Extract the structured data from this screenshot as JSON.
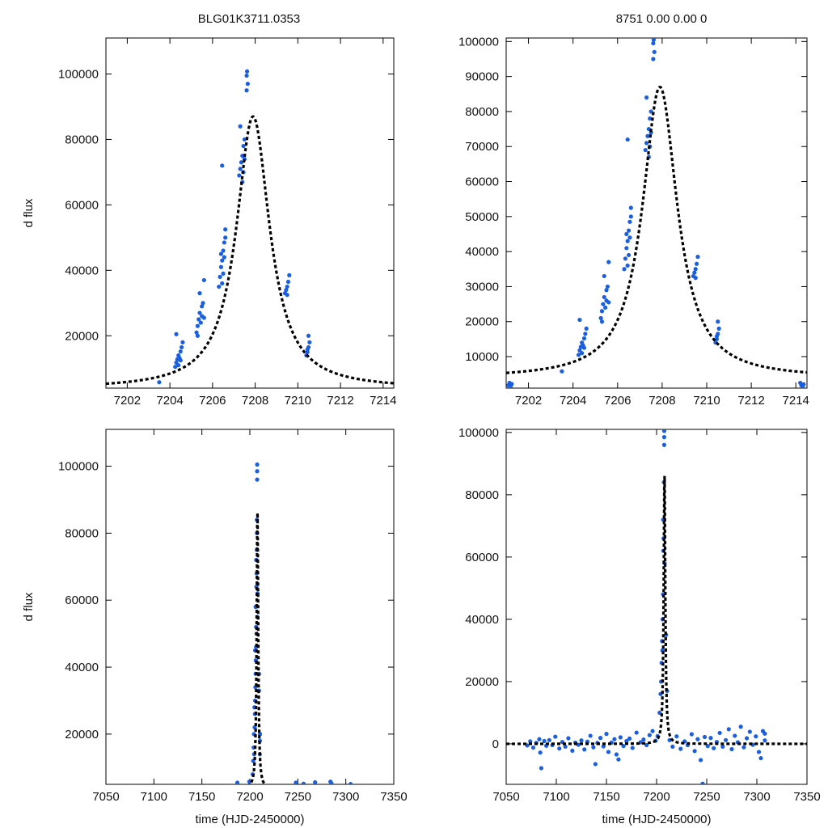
{
  "figure": {
    "title_left": "BLG01K3711.0353",
    "title_right": "8751   0.00   0.00   0",
    "point_color": "#1a5fe0",
    "model_color": "#000000"
  },
  "chart_data": [
    {
      "type": "scatter",
      "panel": "top-left",
      "title": "BLG01K3711.0353",
      "xlabel": "",
      "ylabel": "d flux",
      "xlim": [
        7201,
        7214.5
      ],
      "ylim": [
        4000,
        111000
      ],
      "xticks": [
        7202,
        7204,
        7206,
        7208,
        7210,
        7212,
        7214
      ],
      "yticks": [
        20000,
        40000,
        60000,
        80000,
        100000
      ],
      "model": {
        "t0": 7207.9,
        "peak": 87000,
        "base": 3800,
        "width": 0.95
      },
      "points": [
        [
          7203.5,
          5800
        ],
        [
          7204.25,
          10500
        ],
        [
          7204.3,
          11800
        ],
        [
          7204.35,
          12800
        ],
        [
          7204.4,
          14000
        ],
        [
          7204.45,
          13200
        ],
        [
          7204.5,
          15200
        ],
        [
          7204.55,
          16500
        ],
        [
          7204.3,
          20500
        ],
        [
          7204.6,
          18000
        ],
        [
          7204.4,
          11000
        ],
        [
          7204.5,
          12500
        ],
        [
          7205.25,
          21000
        ],
        [
          7205.3,
          23000
        ],
        [
          7205.35,
          25000
        ],
        [
          7205.4,
          27000
        ],
        [
          7205.45,
          24000
        ],
        [
          7205.5,
          29000
        ],
        [
          7205.55,
          30000
        ],
        [
          7205.4,
          33000
        ],
        [
          7205.6,
          37000
        ],
        [
          7205.5,
          26000
        ],
        [
          7205.3,
          20000
        ],
        [
          7205.6,
          25500
        ],
        [
          7206.3,
          35000
        ],
        [
          7206.35,
          38000
        ],
        [
          7206.4,
          41000
        ],
        [
          7206.45,
          43000
        ],
        [
          7206.5,
          46000
        ],
        [
          7206.55,
          48500
        ],
        [
          7206.6,
          50000
        ],
        [
          7206.6,
          52500
        ],
        [
          7206.5,
          39000
        ],
        [
          7206.45,
          36000
        ],
        [
          7206.4,
          45000
        ],
        [
          7206.55,
          44000
        ],
        [
          7206.45,
          72000
        ],
        [
          7207.25,
          69000
        ],
        [
          7207.3,
          71000
        ],
        [
          7207.35,
          73000
        ],
        [
          7207.4,
          75000
        ],
        [
          7207.45,
          78000
        ],
        [
          7207.5,
          80000
        ],
        [
          7207.3,
          84000
        ],
        [
          7207.45,
          70000
        ],
        [
          7207.5,
          74000
        ],
        [
          7207.4,
          67000
        ],
        [
          7207.6,
          95000
        ],
        [
          7207.65,
          97000
        ],
        [
          7207.6,
          99500
        ],
        [
          7207.62,
          100800
        ],
        [
          7209.4,
          33000
        ],
        [
          7209.45,
          34000
        ],
        [
          7209.5,
          35000
        ],
        [
          7209.55,
          36500
        ],
        [
          7209.6,
          38500
        ],
        [
          7209.5,
          32500
        ],
        [
          7210.4,
          14000
        ],
        [
          7210.45,
          15000
        ],
        [
          7210.5,
          16500
        ],
        [
          7210.55,
          18000
        ],
        [
          7210.5,
          20000
        ],
        [
          7210.45,
          15800
        ]
      ]
    },
    {
      "type": "scatter",
      "panel": "top-right",
      "title": "8751   0.00   0.00   0",
      "xlabel": "",
      "ylabel": "",
      "xlim": [
        7201,
        7214.5
      ],
      "ylim": [
        1000,
        101000
      ],
      "xticks": [
        7202,
        7204,
        7206,
        7208,
        7210,
        7212,
        7214
      ],
      "yticks": [
        10000,
        20000,
        30000,
        40000,
        50000,
        60000,
        70000,
        80000,
        90000,
        100000
      ],
      "model": {
        "t0": 7207.9,
        "peak": 87000,
        "base": 3800,
        "width": 0.95
      },
      "points": [
        [
          7201.1,
          1800
        ],
        [
          7201.15,
          2500
        ],
        [
          7201.2,
          1500
        ],
        [
          7201.25,
          2200
        ],
        [
          7203.5,
          5800
        ],
        [
          7204.25,
          10500
        ],
        [
          7204.3,
          11800
        ],
        [
          7204.35,
          12800
        ],
        [
          7204.4,
          14000
        ],
        [
          7204.45,
          13200
        ],
        [
          7204.5,
          15200
        ],
        [
          7204.55,
          16500
        ],
        [
          7204.3,
          20500
        ],
        [
          7204.6,
          18000
        ],
        [
          7204.4,
          11000
        ],
        [
          7204.5,
          12500
        ],
        [
          7205.25,
          21000
        ],
        [
          7205.3,
          23000
        ],
        [
          7205.35,
          25000
        ],
        [
          7205.4,
          27000
        ],
        [
          7205.45,
          24000
        ],
        [
          7205.5,
          29000
        ],
        [
          7205.55,
          30000
        ],
        [
          7205.4,
          33000
        ],
        [
          7205.6,
          37000
        ],
        [
          7205.5,
          26000
        ],
        [
          7205.3,
          20000
        ],
        [
          7205.6,
          25500
        ],
        [
          7206.3,
          35000
        ],
        [
          7206.35,
          38000
        ],
        [
          7206.4,
          41000
        ],
        [
          7206.45,
          43000
        ],
        [
          7206.5,
          46000
        ],
        [
          7206.55,
          48500
        ],
        [
          7206.6,
          50000
        ],
        [
          7206.6,
          52500
        ],
        [
          7206.5,
          39000
        ],
        [
          7206.45,
          36000
        ],
        [
          7206.4,
          45000
        ],
        [
          7206.55,
          44000
        ],
        [
          7206.45,
          72000
        ],
        [
          7207.25,
          69000
        ],
        [
          7207.3,
          71000
        ],
        [
          7207.35,
          73000
        ],
        [
          7207.4,
          75000
        ],
        [
          7207.45,
          78000
        ],
        [
          7207.5,
          80000
        ],
        [
          7207.3,
          84000
        ],
        [
          7207.45,
          70000
        ],
        [
          7207.5,
          74000
        ],
        [
          7207.4,
          67000
        ],
        [
          7207.6,
          95000
        ],
        [
          7207.65,
          97000
        ],
        [
          7207.6,
          99500
        ],
        [
          7207.62,
          100500
        ],
        [
          7209.4,
          33000
        ],
        [
          7209.45,
          34000
        ],
        [
          7209.5,
          35000
        ],
        [
          7209.55,
          36500
        ],
        [
          7209.6,
          38500
        ],
        [
          7209.5,
          32500
        ],
        [
          7210.4,
          14000
        ],
        [
          7210.45,
          15000
        ],
        [
          7210.5,
          16500
        ],
        [
          7210.55,
          18000
        ],
        [
          7210.5,
          20000
        ],
        [
          7210.45,
          15800
        ],
        [
          7214.2,
          2500
        ],
        [
          7214.25,
          1800
        ],
        [
          7214.3,
          1400
        ],
        [
          7214.35,
          2100
        ]
      ]
    },
    {
      "type": "scatter",
      "panel": "bottom-left",
      "title": "",
      "xlabel": "time (HJD-2450000)",
      "ylabel": "d flux",
      "xlim": [
        7050,
        7350
      ],
      "ylim": [
        5000,
        111000
      ],
      "xticks": [
        7050,
        7100,
        7150,
        7200,
        7250,
        7300,
        7350
      ],
      "yticks": [
        20000,
        40000,
        60000,
        80000,
        100000
      ],
      "model": {
        "t0": 7207.9,
        "peak": 87000,
        "base": 3800,
        "width": 0.95
      },
      "points": [
        [
          7187,
          5500
        ],
        [
          7199.5,
          5800
        ],
        [
          7203,
          8000
        ],
        [
          7203.5,
          12000
        ],
        [
          7204,
          16000
        ],
        [
          7204.3,
          20000
        ],
        [
          7204.5,
          14000
        ],
        [
          7205,
          22000
        ],
        [
          7205.3,
          26000
        ],
        [
          7205.5,
          30000
        ],
        [
          7205.8,
          34000
        ],
        [
          7206,
          38000
        ],
        [
          7206.2,
          42000
        ],
        [
          7206.5,
          46000
        ],
        [
          7206.5,
          52000
        ],
        [
          7206.6,
          72000
        ],
        [
          7207,
          68000
        ],
        [
          7207.2,
          75000
        ],
        [
          7207.4,
          80000
        ],
        [
          7207.3,
          84000
        ],
        [
          7207.6,
          96000
        ],
        [
          7207.6,
          98500
        ],
        [
          7207.62,
          100500
        ],
        [
          7209.5,
          33000
        ],
        [
          7209.6,
          38000
        ],
        [
          7210.4,
          14000
        ],
        [
          7210.5,
          18000
        ],
        [
          7210.6,
          20000
        ],
        [
          7208,
          62000
        ],
        [
          7207.8,
          55000
        ],
        [
          7205.5,
          45000
        ],
        [
          7206,
          58000
        ],
        [
          7206.8,
          64000
        ],
        [
          7207,
          50000
        ],
        [
          7204.8,
          28000
        ],
        [
          7248,
          5500
        ],
        [
          7256,
          5200
        ],
        [
          7268,
          5600
        ],
        [
          7284,
          5800
        ],
        [
          7285,
          5300
        ],
        [
          7305,
          5100
        ]
      ]
    },
    {
      "type": "scatter",
      "panel": "bottom-right",
      "title": "",
      "xlabel": "time (HJD-2450000)",
      "ylabel": "",
      "xlim": [
        7050,
        7350
      ],
      "ylim": [
        -13000,
        101000
      ],
      "xticks": [
        7050,
        7100,
        7150,
        7200,
        7250,
        7300,
        7350
      ],
      "yticks": [
        0,
        20000,
        40000,
        60000,
        80000,
        100000
      ],
      "model": {
        "t0": 7207.9,
        "peak": 87000,
        "base": 0,
        "width": 0.95
      },
      "points": [
        [
          7071,
          -500
        ],
        [
          7074,
          800
        ],
        [
          7077,
          -1200
        ],
        [
          7080,
          300
        ],
        [
          7083,
          1500
        ],
        [
          7084,
          -2800
        ],
        [
          7085,
          -7800
        ],
        [
          7088,
          900
        ],
        [
          7090,
          -600
        ],
        [
          7093,
          1200
        ],
        [
          7096,
          -400
        ],
        [
          7099,
          2300
        ],
        [
          7103,
          -1500
        ],
        [
          7106,
          600
        ],
        [
          7109,
          -900
        ],
        [
          7112,
          1800
        ],
        [
          7116,
          -2200
        ],
        [
          7119,
          400
        ],
        [
          7122,
          -300
        ],
        [
          7125,
          1100
        ],
        [
          7128,
          -1800
        ],
        [
          7131,
          700
        ],
        [
          7134,
          2600
        ],
        [
          7137,
          -1100
        ],
        [
          7139,
          -6500
        ],
        [
          7141,
          300
        ],
        [
          7144,
          1900
        ],
        [
          7147,
          -800
        ],
        [
          7150,
          3200
        ],
        [
          7152,
          -2600
        ],
        [
          7155,
          400
        ],
        [
          7158,
          1500
        ],
        [
          7160,
          -3400
        ],
        [
          7162,
          -5000
        ],
        [
          7164,
          2100
        ],
        [
          7167,
          -700
        ],
        [
          7170,
          900
        ],
        [
          7173,
          1700
        ],
        [
          7176,
          -1300
        ],
        [
          7180,
          3600
        ],
        [
          7184,
          500
        ],
        [
          7187,
          1400
        ],
        [
          7190,
          -400
        ],
        [
          7193,
          2800
        ],
        [
          7196,
          4100
        ],
        [
          7199,
          1000
        ],
        [
          7201,
          2500
        ],
        [
          7203,
          10000
        ],
        [
          7204,
          16000
        ],
        [
          7204.5,
          20000
        ],
        [
          7205,
          26000
        ],
        [
          7205.5,
          33000
        ],
        [
          7206,
          40000
        ],
        [
          7206.5,
          48000
        ],
        [
          7206.6,
          72000
        ],
        [
          7207,
          66000
        ],
        [
          7207.3,
          84000
        ],
        [
          7207.6,
          96000
        ],
        [
          7207.6,
          98500
        ],
        [
          7207.62,
          100500
        ],
        [
          7209.5,
          35000
        ],
        [
          7210.5,
          17000
        ],
        [
          7208,
          58000
        ],
        [
          7206.8,
          62000
        ],
        [
          7205.8,
          30000
        ],
        [
          7213,
          1200
        ],
        [
          7216,
          -900
        ],
        [
          7220,
          2400
        ],
        [
          7224,
          -1600
        ],
        [
          7228,
          800
        ],
        [
          7231,
          -400
        ],
        [
          7235,
          3100
        ],
        [
          7238,
          -2300
        ],
        [
          7241,
          1500
        ],
        [
          7244,
          -5200
        ],
        [
          7246,
          -12800
        ],
        [
          7248,
          2200
        ],
        [
          7251,
          -700
        ],
        [
          7254,
          1900
        ],
        [
          7257,
          -1400
        ],
        [
          7260,
          600
        ],
        [
          7263,
          3500
        ],
        [
          7266,
          -900
        ],
        [
          7269,
          1200
        ],
        [
          7272,
          4700
        ],
        [
          7275,
          -1700
        ],
        [
          7278,
          2600
        ],
        [
          7281,
          500
        ],
        [
          7284,
          5500
        ],
        [
          7287,
          -1100
        ],
        [
          7290,
          1800
        ],
        [
          7293,
          3900
        ],
        [
          7296,
          -300
        ],
        [
          7299,
          2400
        ],
        [
          7302,
          -2600
        ],
        [
          7304,
          -4600
        ],
        [
          7306,
          4100
        ],
        [
          7308,
          1100
        ],
        [
          7308,
          3300
        ]
      ]
    }
  ]
}
